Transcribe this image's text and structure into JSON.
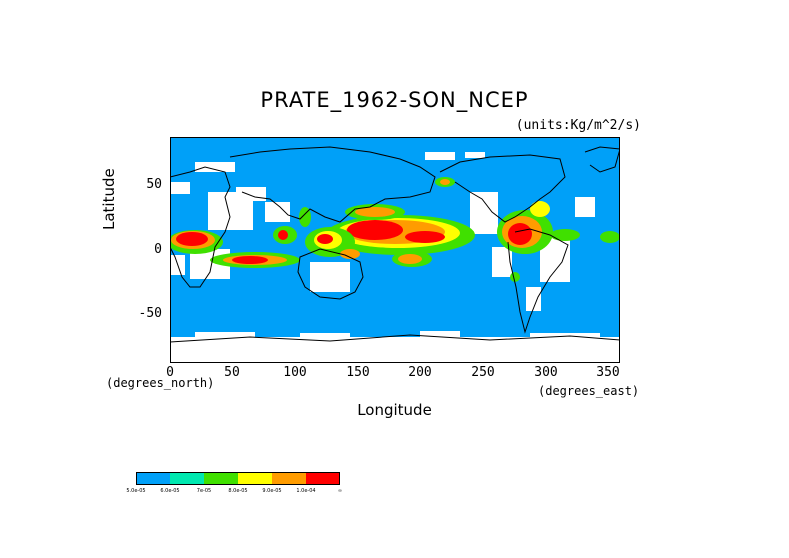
{
  "title": "PRATE_1962-SON_NCEP",
  "units": "(units:Kg/m^2/s)",
  "ylabel": "Latitude",
  "xlabel": "Longitude",
  "x_unit_note": "(degrees_north)",
  "x_unit_note_right": "(degrees_east)",
  "y_ticks": [
    "50",
    "0",
    "-50"
  ],
  "x_ticks": [
    "0",
    "50",
    "100",
    "150",
    "200",
    "250",
    "300",
    "350"
  ],
  "colors": {
    "ocean": "#00a0f8",
    "missing": "#ffffff",
    "c2": "#00e8b0",
    "c3": "#40e000",
    "c4": "#ffff00",
    "c5": "#ff9c00",
    "c6": "#ff0000",
    "coast": "#000000"
  },
  "legend": {
    "colors": [
      "#00a0f8",
      "#00e8b0",
      "#40e000",
      "#ffff00",
      "#ff9c00",
      "#ff0000"
    ],
    "labels": [
      "5.0e-05",
      "6.0e-05",
      "7e-05",
      "8.0e-05",
      "9.0e-05",
      "1.0e-04",
      "∞"
    ]
  },
  "chart_data": {
    "type": "heatmap",
    "title": "PRATE_1962-SON_NCEP",
    "xlabel": "Longitude",
    "ylabel": "Latitude",
    "xlim": [
      0,
      360
    ],
    "ylim": [
      -90,
      90
    ],
    "x_ticks": [
      0,
      50,
      100,
      150,
      200,
      250,
      300,
      350
    ],
    "y_ticks": [
      50,
      0,
      -50
    ],
    "units": "Kg/m^2/s",
    "legend_thresholds": [
      "5.0e-05",
      "6.0e-05",
      "7e-05",
      "8.0e-05",
      "9.0e-05",
      "1.0e-04"
    ]
  }
}
